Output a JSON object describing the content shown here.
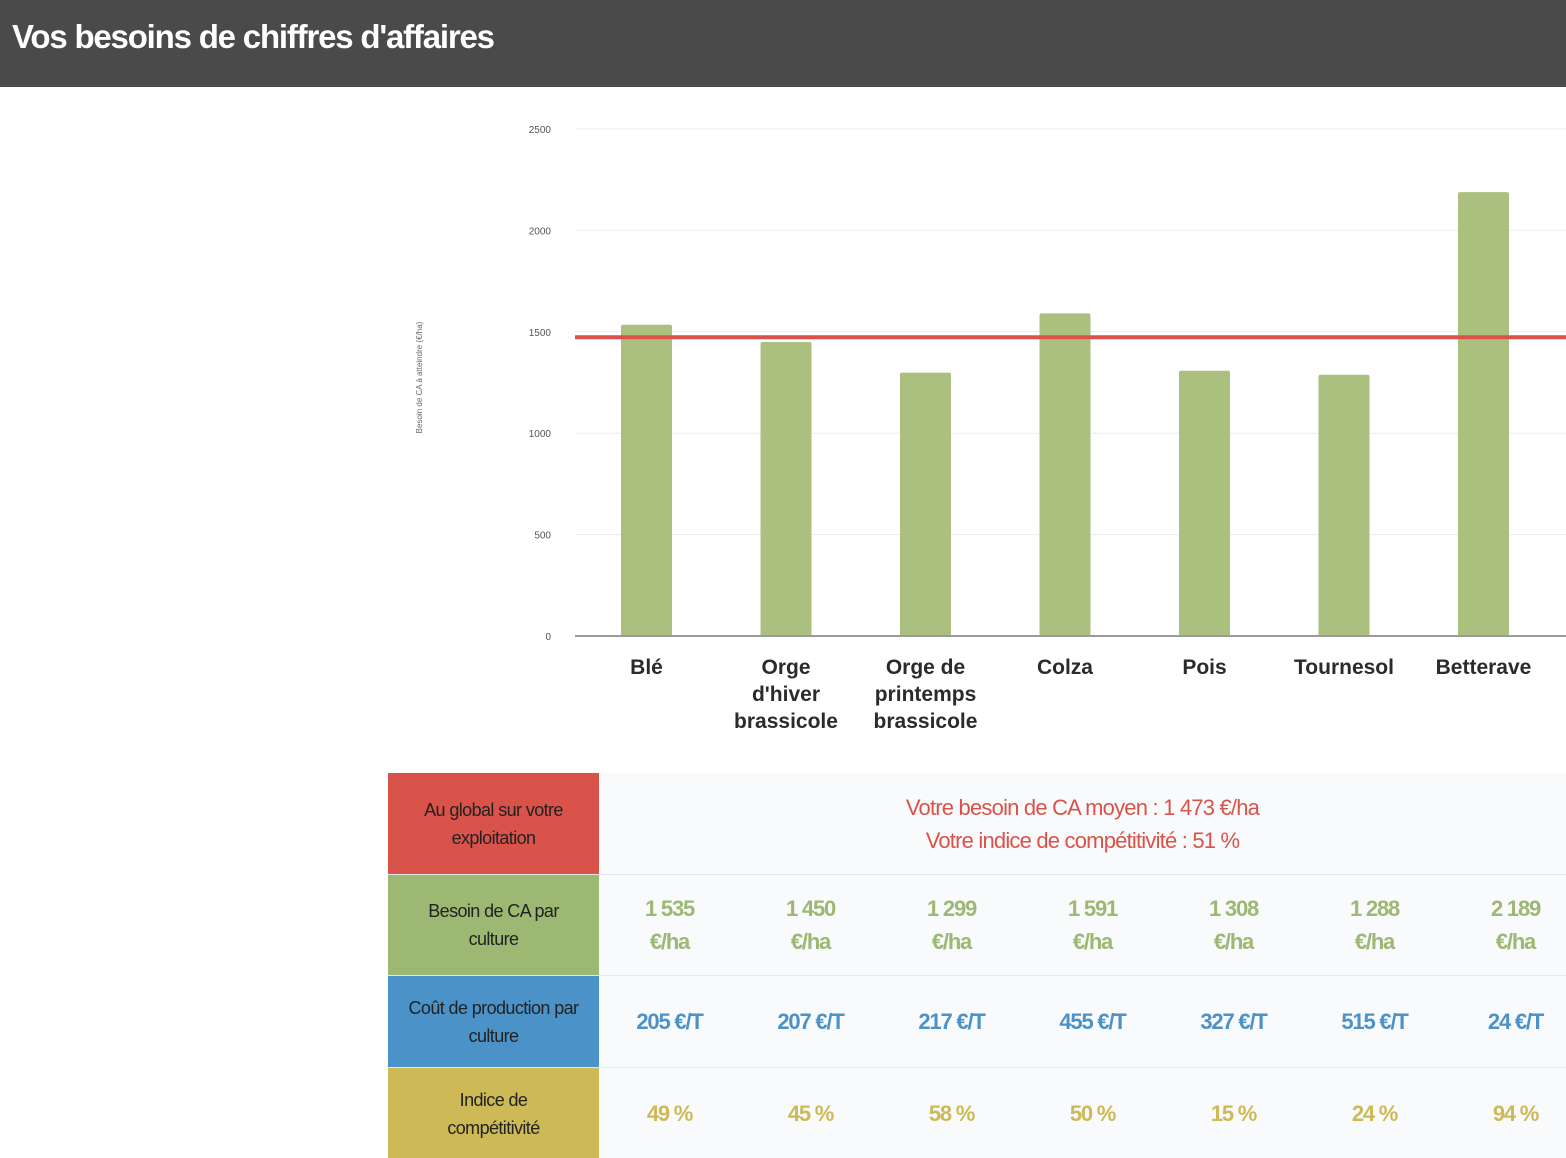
{
  "header": {
    "title": "Vos besoins de chiffres d'affaires"
  },
  "colors": {
    "header_bg": "#4a4a4a",
    "bar": "#abc07e",
    "avg_line": "#dc524a",
    "red": "#d9534a",
    "green": "#9cb872",
    "blue": "#4b92c8",
    "yellow": "#cdb955"
  },
  "chart_data": {
    "type": "bar",
    "ylabel": "Besoin de CA à atteindre (€/ha)",
    "ylim": [
      0,
      2500
    ],
    "yticks": [
      "0",
      "500",
      "1000",
      "1500",
      "2000",
      "2500"
    ],
    "grid": true,
    "categories": [
      "Blé",
      "Orge d'hiver brassicole",
      "Orge de printemps brassicole",
      "Colza",
      "Pois",
      "Tournesol",
      "Betterave"
    ],
    "category_lines": [
      [
        "Blé"
      ],
      [
        "Orge",
        "d'hiver",
        "brassicole"
      ],
      [
        "Orge de",
        "printemps",
        "brassicole"
      ],
      [
        "Colza"
      ],
      [
        "Pois"
      ],
      [
        "Tournesol"
      ],
      [
        "Betterave"
      ]
    ],
    "values": [
      1535,
      1450,
      1299,
      1591,
      1308,
      1288,
      2189
    ],
    "reference_line": 1473
  },
  "table": {
    "global": {
      "label": "Au global sur votre exploitation",
      "line1": "Votre besoin de CA moyen : 1 473 €/ha",
      "line2": "Votre indice de compétitivité : 51 %"
    },
    "rows": [
      {
        "label": "Besoin de CA par culture",
        "values": [
          "1 535 €/ha",
          "1 450 €/ha",
          "1 299 €/ha",
          "1 591 €/ha",
          "1 308 €/ha",
          "1 288 €/ha",
          "2 189 €/ha"
        ]
      },
      {
        "label": "Coût de production par culture",
        "values": [
          "205 €/T",
          "207 €/T",
          "217 €/T",
          "455 €/T",
          "327 €/T",
          "515 €/T",
          "24 €/T"
        ]
      },
      {
        "label": "Indice de compétitivité",
        "values": [
          "49 %",
          "45 %",
          "58 %",
          "50 %",
          "15 %",
          "24 %",
          "94 %"
        ]
      }
    ]
  }
}
